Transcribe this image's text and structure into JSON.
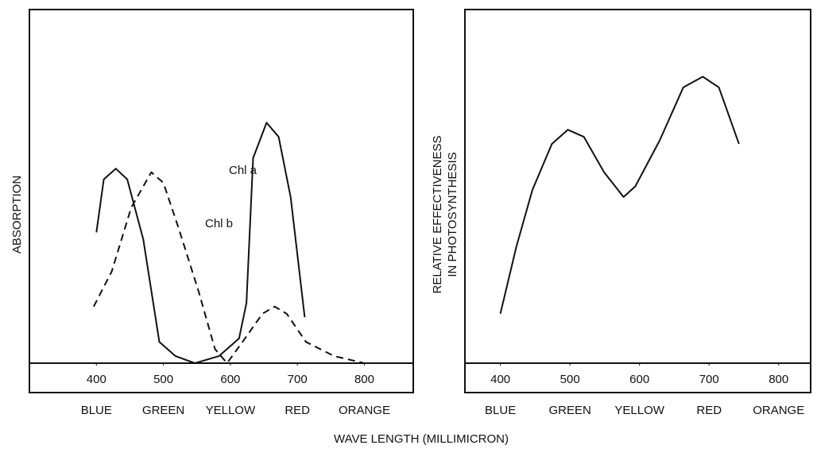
{
  "xlabel": "WAVE LENGTH (MILLIMICRON)",
  "chart_data": [
    {
      "type": "line",
      "ylabel": [
        "ABSORPTION"
      ],
      "xlim": [
        300,
        873
      ],
      "ylim": [
        0,
        100
      ],
      "xticks": [
        400,
        500,
        600,
        700,
        800
      ],
      "bands": [
        "BLUE",
        "GREEN",
        "YELLOW",
        "RED",
        "ORANGE"
      ],
      "series": [
        {
          "name": "Chl a",
          "color": "#111111",
          "dashed": false,
          "x": [
            400,
            411,
            429,
            446,
            470,
            494,
            518,
            547,
            583,
            613,
            624,
            634,
            654,
            672,
            690,
            711
          ],
          "values": [
            37,
            52,
            55,
            52,
            35,
            6,
            2,
            0,
            2,
            7,
            17,
            58,
            68,
            64,
            47,
            13
          ]
        },
        {
          "name": "Chl b",
          "color": "#111111",
          "dashed": true,
          "x": [
            396,
            423,
            452,
            482,
            500,
            523,
            553,
            577,
            595,
            618,
            648,
            666,
            684,
            713,
            755,
            800
          ],
          "values": [
            16,
            26,
            44,
            54,
            51,
            38,
            20,
            4,
            0,
            6,
            14,
            16,
            14,
            6,
            2,
            0
          ]
        }
      ]
    },
    {
      "type": "line",
      "ylabel": [
        "RELATIVE EFFECTIVENESS",
        "IN PHOTOSYNTHESIS"
      ],
      "xlim": [
        349,
        846
      ],
      "ylim": [
        0,
        100
      ],
      "xticks": [
        400,
        500,
        600,
        700,
        800
      ],
      "bands": [
        "BLUE",
        "GREEN",
        "YELLOW",
        "RED",
        "ORANGE"
      ],
      "series": [
        {
          "color": "#111111",
          "dashed": false,
          "x": [
            400,
            423,
            446,
            474,
            497,
            520,
            549,
            577,
            594,
            629,
            663,
            691,
            714,
            743
          ],
          "values": [
            14,
            33,
            49,
            62,
            66,
            64,
            54,
            47,
            50,
            63,
            78,
            81,
            78,
            62
          ]
        }
      ]
    }
  ]
}
